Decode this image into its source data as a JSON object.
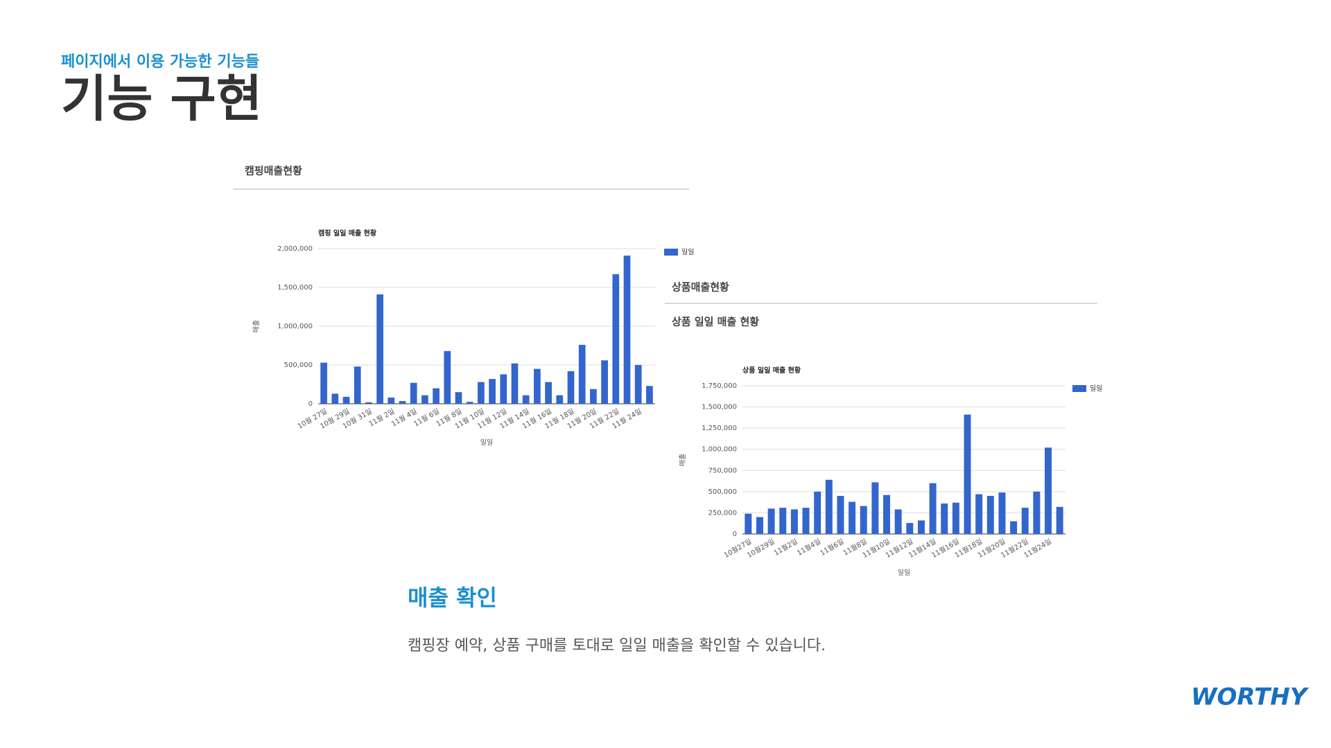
{
  "slide": {
    "subtitle": "페이지에서 이용 가능한 기능들",
    "title": "기능 구현",
    "section_title": "매출 확인",
    "description": "캠핑장 예약, 상품 구매를 토대로 일일 매출을 확인할 수 있습니다.",
    "logo": "WORTHY",
    "panel_1_heading": "캠핑매출현황",
    "panel_2_heading": "상품매출현황",
    "panel_2_subheading": "상품 일일 매출 현황"
  },
  "chart_data": [
    {
      "type": "bar",
      "title": "캠핑 일일 매출 현황",
      "x_label": "일일",
      "y_label": "매출",
      "color": "#3366cc",
      "legend": "right",
      "grid": true,
      "categories": [
        "10월 27일",
        null,
        "10월 29일",
        null,
        "10월 31일",
        null,
        "11월 2일",
        null,
        "11월 4일",
        null,
        "11월 6일",
        null,
        "11월 8일",
        null,
        "11월 10일",
        null,
        "11월 12일",
        null,
        "11월 14일",
        null,
        "11월 16일",
        null,
        "11월 18일",
        null,
        "11월 20일",
        null,
        "11월 22일",
        null,
        "11월 24일",
        null
      ],
      "series": [
        {
          "name": "일일",
          "color": "#3366cc",
          "values": [
            530000,
            130000,
            90000,
            480000,
            20000,
            1410000,
            80000,
            35000,
            270000,
            110000,
            200000,
            680000,
            150000,
            25000,
            280000,
            320000,
            380000,
            520000,
            110000,
            450000,
            280000,
            110000,
            420000,
            760000,
            190000,
            560000,
            1670000,
            1910000,
            500000,
            230000
          ]
        }
      ],
      "ylim": [
        0,
        2000000
      ],
      "yticks": [
        0,
        {
          "value": 500000,
          "label": "500,000"
        },
        {
          "value": 1000000,
          "label": "1,000,000"
        },
        {
          "value": 1500000,
          "label": "1,500,000"
        },
        {
          "value": 2000000,
          "label": "2,000,000"
        }
      ]
    },
    {
      "type": "bar",
      "title": "상품 일일 매출 현황",
      "x_label": "일일",
      "y_label": "매출",
      "color": "#3366cc",
      "legend": "right",
      "grid": true,
      "categories": [
        "10월27일",
        null,
        "10월29일",
        null,
        "11월2일",
        null,
        "11월4일",
        null,
        "11월6일",
        null,
        "11월8일",
        null,
        "11월10일",
        null,
        "11월12일",
        null,
        "11월14일",
        null,
        "11월16일",
        null,
        "11월18일",
        null,
        "11월20일",
        null,
        "11월22일",
        null,
        "11월24일",
        null
      ],
      "series": [
        {
          "name": "일일",
          "color": "#3366cc",
          "values": [
            240000,
            200000,
            300000,
            310000,
            290000,
            310000,
            500000,
            640000,
            450000,
            380000,
            330000,
            610000,
            460000,
            290000,
            130000,
            160000,
            600000,
            360000,
            370000,
            1410000,
            470000,
            450000,
            490000,
            150000,
            310000,
            500000,
            1020000,
            320000
          ]
        }
      ],
      "ylim": [
        0,
        1750000
      ],
      "yticks": [
        0,
        {
          "value": 250000,
          "label": "250,000"
        },
        {
          "value": 500000,
          "label": "500,000"
        },
        {
          "value": 750000,
          "label": "750,000"
        },
        {
          "value": 1000000,
          "label": "1,000,000"
        },
        {
          "value": 1250000,
          "label": "1,250,000"
        },
        {
          "value": 1500000,
          "label": "1,500,000"
        },
        {
          "value": 1750000,
          "label": "1,750,000"
        }
      ]
    }
  ]
}
